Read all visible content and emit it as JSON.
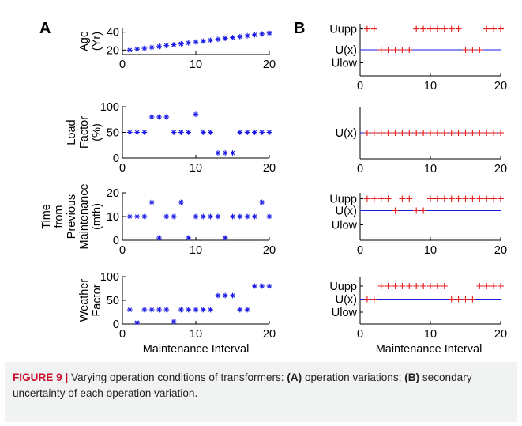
{
  "panel_labels": {
    "a": "A",
    "b": "B"
  },
  "xlabel": "Maintenance Interval",
  "colors": {
    "series_a": "#1a1ae6",
    "series_b": "#e61a1a",
    "line_b": "#1a1ae6",
    "axis": "#000000",
    "caption_bg": "#f1f2f2",
    "caption_label": "#c8102e"
  },
  "caption": {
    "label": "FIGURE 9 |",
    "text_1": " Varying operation conditions of transformers: ",
    "a_mark": "(A)",
    "text_2": " operation variations; ",
    "b_mark": "(B)",
    "text_3": " secondary uncertainty of each operation variation."
  },
  "chart_data": [
    {
      "type": "scatter",
      "panel": "A",
      "marker": "*",
      "ylabel_lines": [
        "Age",
        "(Yr)"
      ],
      "xlim": [
        0,
        20
      ],
      "ylim": [
        15,
        45
      ],
      "xticks": [
        "0",
        "10",
        "20"
      ],
      "yticks": [
        "20",
        "40"
      ],
      "x": [
        1,
        2,
        3,
        4,
        5,
        6,
        7,
        8,
        9,
        10,
        11,
        12,
        13,
        14,
        15,
        16,
        17,
        18,
        19,
        20
      ],
      "y": [
        20,
        21,
        22,
        23,
        24,
        25,
        26,
        27,
        28,
        29,
        30,
        31,
        32,
        33,
        34,
        35,
        36,
        37,
        38,
        39
      ]
    },
    {
      "type": "scatter",
      "panel": "A",
      "marker": "*",
      "ylabel_lines": [
        "Load",
        "Factor",
        "(%)"
      ],
      "xlim": [
        0,
        20
      ],
      "ylim": [
        0,
        100
      ],
      "xticks": [
        "0",
        "10",
        "20"
      ],
      "yticks": [
        "0",
        "50",
        "100"
      ],
      "x": [
        1,
        2,
        3,
        4,
        5,
        6,
        7,
        8,
        9,
        10,
        11,
        12,
        13,
        14,
        15,
        16,
        17,
        18,
        19,
        20
      ],
      "y": [
        50,
        50,
        50,
        80,
        80,
        80,
        50,
        50,
        50,
        85,
        50,
        50,
        10,
        10,
        10,
        50,
        50,
        50,
        50,
        50
      ]
    },
    {
      "type": "scatter",
      "panel": "A",
      "marker": "*",
      "ylabel_lines": [
        "Time",
        "from",
        "Previous",
        "Maintenance",
        "(mth)"
      ],
      "xlim": [
        0,
        20
      ],
      "ylim": [
        0,
        20
      ],
      "xticks": [
        "0",
        "10",
        "20"
      ],
      "yticks": [
        "0",
        "10",
        "20"
      ],
      "x": [
        1,
        2,
        3,
        4,
        5,
        6,
        7,
        8,
        9,
        10,
        11,
        12,
        13,
        14,
        15,
        16,
        17,
        18,
        19,
        20
      ],
      "y": [
        10,
        10,
        10,
        16,
        1,
        10,
        10,
        16,
        1,
        10,
        10,
        10,
        10,
        1,
        10,
        10,
        10,
        10,
        16,
        10
      ]
    },
    {
      "type": "scatter",
      "panel": "A",
      "marker": "*",
      "ylabel_lines": [
        "Weather",
        "Factor"
      ],
      "xlim": [
        0,
        20
      ],
      "ylim": [
        0,
        100
      ],
      "xticks": [
        "0",
        "10",
        "20"
      ],
      "yticks": [
        "0",
        "50",
        "100"
      ],
      "x": [
        1,
        2,
        3,
        4,
        5,
        6,
        7,
        8,
        9,
        10,
        11,
        12,
        13,
        14,
        15,
        16,
        17,
        18,
        19,
        20
      ],
      "y": [
        30,
        3,
        30,
        30,
        30,
        30,
        5,
        30,
        30,
        30,
        30,
        30,
        60,
        60,
        60,
        30,
        30,
        80,
        80,
        80
      ]
    },
    {
      "type": "scatter",
      "panel": "B",
      "marker": "+",
      "xlim": [
        0,
        20
      ],
      "ylim": [
        0,
        4
      ],
      "xticks": [
        "0",
        "10",
        "20"
      ],
      "ytick_values": [
        1,
        2,
        3.6
      ],
      "ytick_labels": [
        "Ulow",
        "U(x)",
        "Uupp"
      ],
      "line_y": 2,
      "x": [
        1,
        2,
        3,
        4,
        5,
        6,
        7,
        8,
        9,
        10,
        11,
        12,
        13,
        14,
        15,
        16,
        17,
        18,
        19,
        20
      ],
      "y": [
        3.6,
        3.6,
        2,
        2,
        2,
        2,
        2,
        3.6,
        3.6,
        3.6,
        3.6,
        3.6,
        3.6,
        3.6,
        2,
        2,
        2,
        3.6,
        3.6,
        3.6
      ]
    },
    {
      "type": "scatter",
      "panel": "B",
      "marker": "+",
      "xlim": [
        0,
        20
      ],
      "ylim": [
        0,
        4
      ],
      "xticks": [
        "0",
        "10",
        "20"
      ],
      "ytick_values": [
        2
      ],
      "ytick_labels": [
        "U(x)"
      ],
      "line_y": 2,
      "x": [
        1,
        2,
        3,
        4,
        5,
        6,
        7,
        8,
        9,
        10,
        11,
        12,
        13,
        14,
        15,
        16,
        17,
        18,
        19,
        20
      ],
      "y": [
        2,
        2,
        2,
        2,
        2,
        2,
        2,
        2,
        2,
        2,
        2,
        2,
        2,
        2,
        2,
        2,
        2,
        2,
        2,
        2
      ]
    },
    {
      "type": "scatter",
      "panel": "B",
      "marker": "+",
      "xlim": [
        0,
        20
      ],
      "ylim": [
        0,
        4
      ],
      "xticks": [
        "0",
        "10",
        "20"
      ],
      "ytick_values": [
        1.3,
        2.5,
        3.5
      ],
      "ytick_labels": [
        "Ulow",
        "U(x)",
        "Uupp"
      ],
      "line_y": 2.5,
      "x": [
        1,
        2,
        3,
        4,
        5,
        6,
        7,
        8,
        9,
        10,
        11,
        12,
        13,
        14,
        15,
        16,
        17,
        18,
        19,
        20
      ],
      "y": [
        3.5,
        3.5,
        3.5,
        3.5,
        2.5,
        3.5,
        3.5,
        2.5,
        2.5,
        3.5,
        3.5,
        3.5,
        3.5,
        3.5,
        3.5,
        3.5,
        3.5,
        3.5,
        3.5,
        3.5
      ]
    },
    {
      "type": "scatter",
      "panel": "B",
      "marker": "+",
      "xlim": [
        0,
        20
      ],
      "ylim": [
        0,
        4
      ],
      "xticks": [
        "0",
        "10",
        "20"
      ],
      "ytick_values": [
        1.0,
        2.1,
        3.2
      ],
      "ytick_labels": [
        "Ulow",
        "U(x)",
        "Uupp"
      ],
      "line_y": 2.1,
      "x": [
        1,
        2,
        3,
        4,
        5,
        6,
        7,
        8,
        9,
        10,
        11,
        12,
        13,
        14,
        15,
        16,
        17,
        18,
        19,
        20
      ],
      "y": [
        2.1,
        2.1,
        3.2,
        3.2,
        3.2,
        3.2,
        3.2,
        3.2,
        3.2,
        3.2,
        3.2,
        3.2,
        2.1,
        2.1,
        2.1,
        2.1,
        3.2,
        3.2,
        3.2,
        3.2
      ]
    }
  ]
}
